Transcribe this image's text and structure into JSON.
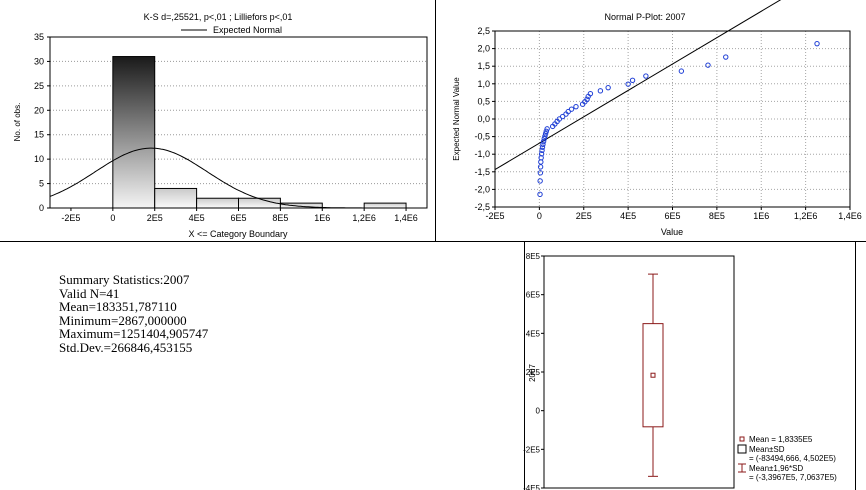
{
  "charts": {
    "histogram": {
      "type": "bar",
      "title": "K-S d=,25521, p<,01 ; Lilliefors p<,01",
      "legend": "Expected Normal",
      "xlabel": "X <= Category Boundary",
      "ylabel": "No. of obs.",
      "xlim": [
        -300000,
        1500000
      ],
      "ylim": [
        0,
        35
      ],
      "xticks": [
        -200000,
        0,
        200000,
        400000,
        600000,
        800000,
        1000000,
        1200000,
        1400000
      ],
      "xtick_labels": [
        "-2E5",
        "0",
        "2E5",
        "4E5",
        "6E5",
        "8E5",
        "1E6",
        "1,2E6",
        "1,4E6"
      ],
      "yticks": [
        0,
        5,
        10,
        15,
        20,
        25,
        30,
        35
      ],
      "ytick_labels": [
        "0",
        "5",
        "10",
        "15",
        "20",
        "25",
        "30",
        "35"
      ]
    },
    "pplot": {
      "type": "scatter",
      "title": "Normal P-Plot: 2007",
      "xlabel": "Value",
      "ylabel": "Expected Normal Value",
      "xlim": [
        -200000,
        1400000
      ],
      "ylim": [
        -2.5,
        2.5
      ],
      "xticks": [
        -200000,
        0,
        200000,
        400000,
        600000,
        800000,
        1000000,
        1200000,
        1400000
      ],
      "xtick_labels": [
        "-2E5",
        "0",
        "2E5",
        "4E5",
        "6E5",
        "8E5",
        "1E6",
        "1,2E6",
        "1,4E6"
      ],
      "yticks": [
        -2.5,
        -2.0,
        -1.5,
        -1.0,
        -0.5,
        0.0,
        0.5,
        1.0,
        1.5,
        2.0,
        2.5
      ],
      "ytick_labels": [
        "-2,5",
        "-2,0",
        "-1,5",
        "-1,0",
        "-0,5",
        "0,0",
        "0,5",
        "1,0",
        "1,5",
        "2,0",
        "2,5"
      ]
    },
    "boxplot": {
      "type": "box",
      "ylabel": "2007",
      "ylim": [
        -400000,
        800000
      ],
      "yticks": [
        -400000,
        -200000,
        0,
        200000,
        400000,
        600000,
        800000
      ],
      "ytick_labels": [
        "-4E5",
        "-2E5",
        "0",
        "2E5",
        "4E5",
        "6E5",
        "8E5"
      ],
      "legend_mean": "Mean = 1,8335E5",
      "legend_sd": "Mean±SD",
      "legend_sd_range": "= (-83494,666, 4,502E5)",
      "legend_ci": "Mean±1,96*SD",
      "legend_ci_range": "= (-3,3967E5, 7,0637E5)"
    }
  },
  "chart_data": [
    {
      "type": "bar",
      "bins": [
        {
          "from": 0,
          "to": 200000,
          "count": 31
        },
        {
          "from": 200000,
          "to": 400000,
          "count": 4
        },
        {
          "from": 400000,
          "to": 600000,
          "count": 2
        },
        {
          "from": 600000,
          "to": 800000,
          "count": 2
        },
        {
          "from": 800000,
          "to": 1000000,
          "count": 1
        },
        {
          "from": 1200000,
          "to": 1400000,
          "count": 1
        }
      ],
      "expected_normal": {
        "mean": 183351.78711,
        "sd": 266846.453155,
        "n": 41,
        "bin_width": 200000
      }
    },
    {
      "type": "scatter",
      "points": [
        [
          2867,
          -2.14
        ],
        [
          3500,
          -1.76
        ],
        [
          4500,
          -1.53
        ],
        [
          5500,
          -1.36
        ],
        [
          6500,
          -1.22
        ],
        [
          8000,
          -1.1
        ],
        [
          10000,
          -0.99
        ],
        [
          12000,
          -0.89
        ],
        [
          14000,
          -0.8
        ],
        [
          16000,
          -0.72
        ],
        [
          19000,
          -0.64
        ],
        [
          22000,
          -0.56
        ],
        [
          25000,
          -0.49
        ],
        [
          28000,
          -0.42
        ],
        [
          31000,
          -0.35
        ],
        [
          35000,
          -0.28
        ],
        [
          60000,
          -0.21
        ],
        [
          70000,
          -0.14
        ],
        [
          80000,
          -0.07
        ],
        [
          90000,
          0.0
        ],
        [
          105000,
          0.07
        ],
        [
          120000,
          0.14
        ],
        [
          130000,
          0.21
        ],
        [
          145000,
          0.28
        ],
        [
          165000,
          0.35
        ],
        [
          195000,
          0.42
        ],
        [
          205000,
          0.49
        ],
        [
          215000,
          0.56
        ],
        [
          220000,
          0.64
        ],
        [
          230000,
          0.72
        ],
        [
          275000,
          0.8
        ],
        [
          310000,
          0.89
        ],
        [
          400000,
          0.99
        ],
        [
          420000,
          1.1
        ],
        [
          480000,
          1.22
        ],
        [
          640000,
          1.36
        ],
        [
          760000,
          1.53
        ],
        [
          840000,
          1.76
        ],
        [
          1251405,
          2.14
        ]
      ],
      "reference_line": {
        "mean": 183351.78711,
        "sd": 266846.453155
      }
    },
    {
      "type": "box",
      "mean": 183350,
      "mean_minus_sd": -83494.666,
      "mean_plus_sd": 450200,
      "mean_minus_1_96sd": -339670,
      "mean_plus_1_96sd": 706370
    }
  ],
  "summary": {
    "title": "Summary Statistics:2007",
    "lines": [
      "Valid N=41",
      "Mean=183351,787110",
      "Minimum=2867,000000",
      "Maximum=1251404,905747",
      "Std.Dev.=266846,453155"
    ]
  }
}
